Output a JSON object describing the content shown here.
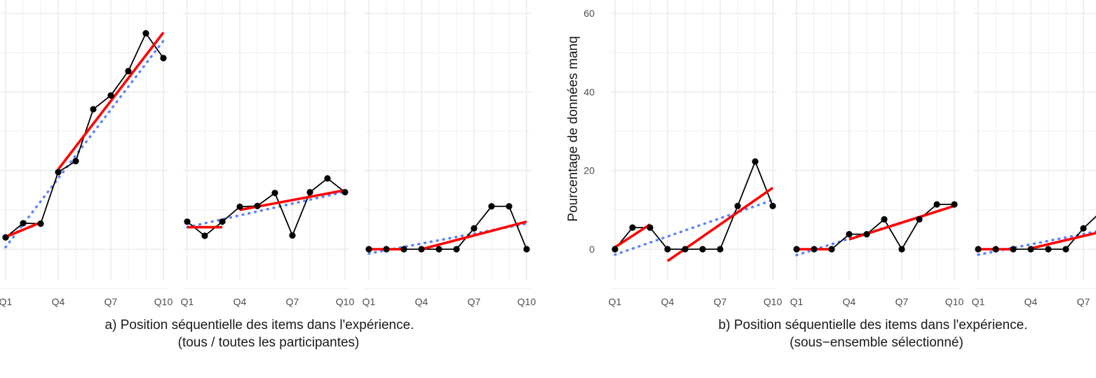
{
  "chart_data": {
    "type": "line",
    "x_categories": [
      "Q1",
      "Q2",
      "Q3",
      "Q4",
      "Q5",
      "Q6",
      "Q7",
      "Q8",
      "Q9",
      "Q10"
    ],
    "x_tick_labels": [
      "Q1",
      "Q4",
      "Q7",
      "Q10"
    ],
    "y_tick_labels": [
      "0",
      "20",
      "40",
      "60"
    ],
    "ylabel": "Pourcentage de données manq",
    "ylim": [
      -9,
      63
    ],
    "grid": true,
    "colors": {
      "observed": "#000000",
      "segment_fit": "#ff0000",
      "overall_fit": "#5b82ff",
      "grid": "#ebebeb"
    },
    "groups": [
      {
        "caption_line1": "a) Position séquentielle des items dans l'expérience.",
        "caption_line2": "(tous / toutes les participantes)",
        "panels": [
          {
            "values": [
              3,
              6.6,
              6.5,
              19.6,
              22.4,
              35.6,
              39.1,
              45.3,
              54.9,
              48.6
            ],
            "fit_early": [
              [
                1,
                3.1
              ],
              [
                3,
                6.8
              ]
            ],
            "fit_late": [
              [
                4,
                20.3
              ],
              [
                10,
                55.1
              ]
            ],
            "fit_overall": [
              [
                1,
                0.5
              ],
              [
                10,
                53
              ]
            ]
          },
          {
            "values": [
              7,
              3.4,
              7,
              10.8,
              11,
              14.3,
              3.5,
              14.5,
              18,
              14.5
            ],
            "fit_early": [
              [
                1,
                5.6
              ],
              [
                3,
                5.6
              ]
            ],
            "fit_late": [
              [
                4,
                10
              ],
              [
                10,
                15
              ]
            ],
            "fit_overall": [
              [
                1,
                5.6
              ],
              [
                10,
                14.6
              ]
            ]
          },
          {
            "values": [
              0,
              0,
              0,
              0,
              0,
              0,
              5.3,
              10.9,
              10.9,
              0
            ],
            "fit_early": [
              [
                1,
                0
              ],
              [
                3,
                0
              ]
            ],
            "fit_late": [
              [
                4,
                0
              ],
              [
                10,
                7
              ]
            ],
            "fit_overall": [
              [
                1,
                -1.1
              ],
              [
                10,
                6.5
              ]
            ]
          }
        ]
      },
      {
        "caption_line1": "b) Position séquentielle des items dans l'expérience.",
        "caption_line2": "(sous−ensemble sélectionné)",
        "panels": [
          {
            "values": [
              0,
              5.5,
              5.5,
              0,
              0,
              0,
              0,
              11,
              22.3,
              11
            ],
            "fit_early": [
              [
                1,
                0.5
              ],
              [
                3,
                6.3
              ]
            ],
            "fit_late": [
              [
                4,
                -3
              ],
              [
                10,
                15.6
              ]
            ],
            "fit_overall": [
              [
                1,
                -1.4
              ],
              [
                10,
                12.5
              ]
            ]
          },
          {
            "values": [
              0,
              0,
              0,
              3.8,
              3.8,
              7.6,
              0,
              7.6,
              11.4,
              11.4
            ],
            "fit_early": [
              [
                1,
                0
              ],
              [
                3,
                0
              ]
            ],
            "fit_late": [
              [
                4,
                2.5
              ],
              [
                10,
                11
              ]
            ],
            "fit_overall": [
              [
                1,
                -1.5
              ],
              [
                10,
                11
              ]
            ]
          },
          {
            "values": [
              0,
              0,
              0,
              0,
              0,
              0,
              5.3,
              9.5,
              9.5,
              0
            ],
            "fit_early": [
              [
                1,
                0
              ],
              [
                3,
                0
              ]
            ],
            "fit_late": [
              [
                4,
                0.2
              ],
              [
                10,
                6.5
              ]
            ],
            "fit_overall": [
              [
                1,
                -1.4
              ],
              [
                10,
                6.5
              ]
            ]
          }
        ]
      }
    ]
  }
}
